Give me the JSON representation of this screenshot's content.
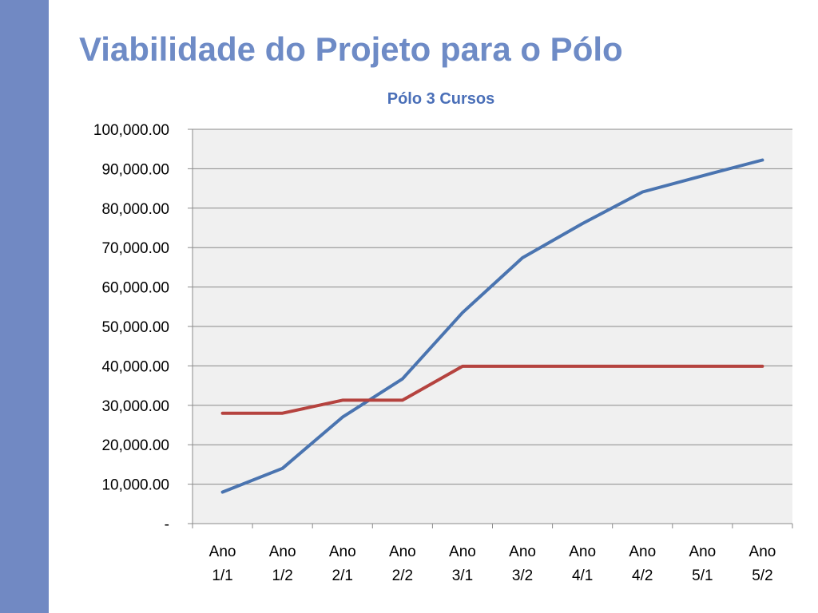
{
  "slide": {
    "title": "Viabilidade do Projeto para o Pólo"
  },
  "colors": {
    "sidebar": "#7189c3",
    "title": "#6e8bc6",
    "chart_title": "#4a6fb8",
    "plot_bg": "#f0f0f0",
    "series_blue": "#4a74b0",
    "series_red": "#b5433f"
  },
  "chart_data": {
    "type": "line",
    "title": "Pólo 3 Cursos",
    "xlabel": "",
    "ylabel": "",
    "categories": [
      "Ano 1/1",
      "Ano 1/2",
      "Ano 2/1",
      "Ano 2/2",
      "Ano 3/1",
      "Ano 3/2",
      "Ano 4/1",
      "Ano 4/2",
      "Ano 5/1",
      "Ano 5/2"
    ],
    "ylim": [
      0,
      100000
    ],
    "yticks": [
      {
        "value": 0,
        "label": "-"
      },
      {
        "value": 10000,
        "label": "10,000.00"
      },
      {
        "value": 20000,
        "label": "20,000.00"
      },
      {
        "value": 30000,
        "label": "30,000.00"
      },
      {
        "value": 40000,
        "label": "40,000.00"
      },
      {
        "value": 50000,
        "label": "50,000.00"
      },
      {
        "value": 60000,
        "label": "60,000.00"
      },
      {
        "value": 70000,
        "label": "70,000.00"
      },
      {
        "value": 80000,
        "label": "80,000.00"
      },
      {
        "value": 90000,
        "label": "90,000.00"
      },
      {
        "value": 100000,
        "label": "100,000.00"
      }
    ],
    "grid": true,
    "legend": "none",
    "series": [
      {
        "color": "#4a74b0",
        "values": [
          8000,
          14000,
          27000,
          36700,
          53500,
          67400,
          76100,
          84100,
          88200,
          92200
        ]
      },
      {
        "color": "#b5433f",
        "values": [
          28000,
          28000,
          31300,
          31300,
          39900,
          39900,
          39900,
          39900,
          39900,
          39900
        ]
      }
    ]
  }
}
